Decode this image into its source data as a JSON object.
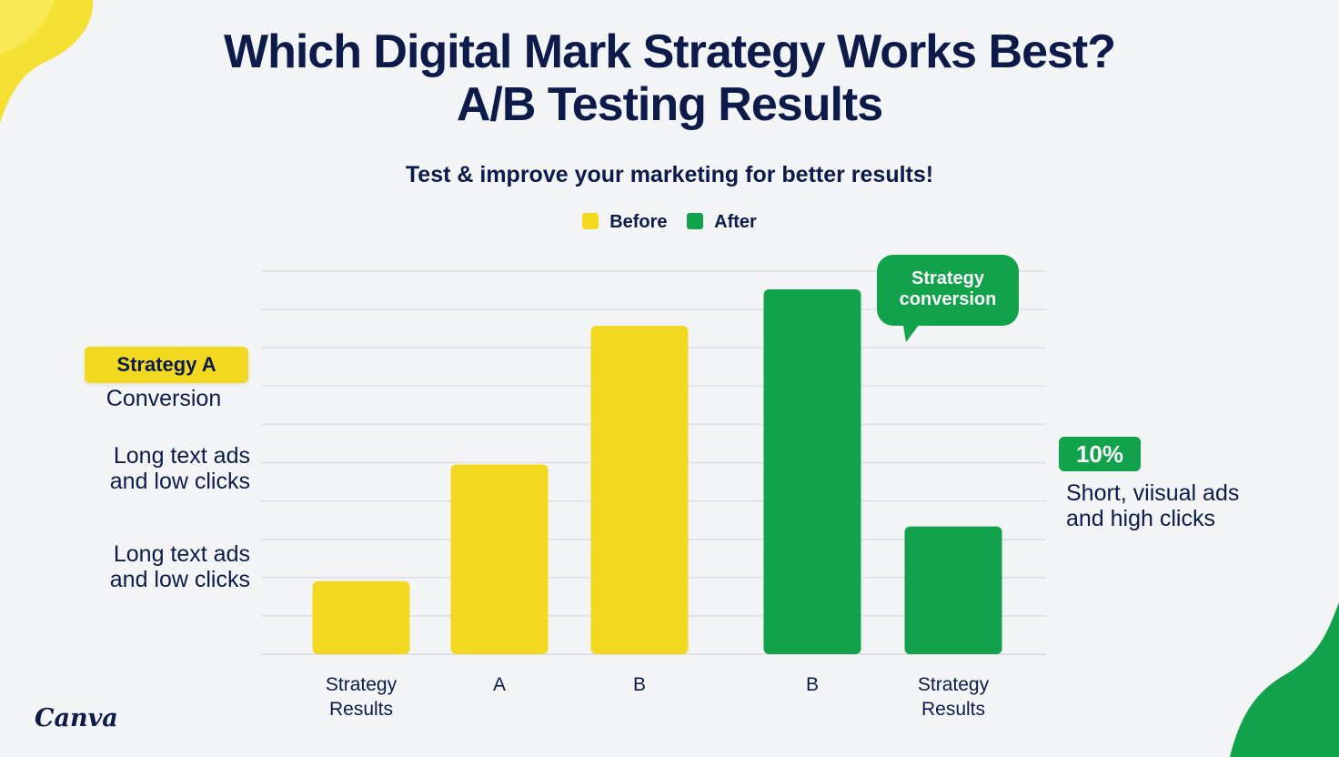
{
  "chart_data": {
    "type": "bar",
    "title": [
      "Which Digital Mark Strategy Works Best?",
      "A/B Testing Results"
    ],
    "subtitle": "Test & improve your marketing for better results!",
    "legend": [
      {
        "name": "Before",
        "color": "#f2d920"
      },
      {
        "name": "After",
        "color": "#12a24b"
      }
    ],
    "categories": [
      [
        "Strategy",
        "Results"
      ],
      [
        "A"
      ],
      [
        "B"
      ],
      [
        "B"
      ],
      [
        "Strategy",
        "Results"
      ]
    ],
    "series_by_bar": [
      "Before",
      "Before",
      "Before",
      "After",
      "After"
    ],
    "values": [
      2,
      5.2,
      9,
      10,
      3.5
    ],
    "ylim": [
      0,
      10.5
    ],
    "grid_lines": 11,
    "grid": true,
    "legend_position": "top-center"
  },
  "annotations": {
    "strategy_a_pill": "Strategy A",
    "conversion": "Conversion",
    "left_note_1": [
      "Long text ads",
      "and low clicks"
    ],
    "left_note_2": [
      "Long text ads",
      "and low clicks"
    ],
    "bubble": [
      "Strategy",
      "conversion"
    ],
    "percent_badge": "10%",
    "right_note": [
      "Short, viisual ads",
      "and high clicks"
    ]
  },
  "brand": "Canva",
  "colors": {
    "before": "#f2d920",
    "after": "#12a24b",
    "text": "#0d1b4b",
    "grid": "#dcdfe3"
  }
}
